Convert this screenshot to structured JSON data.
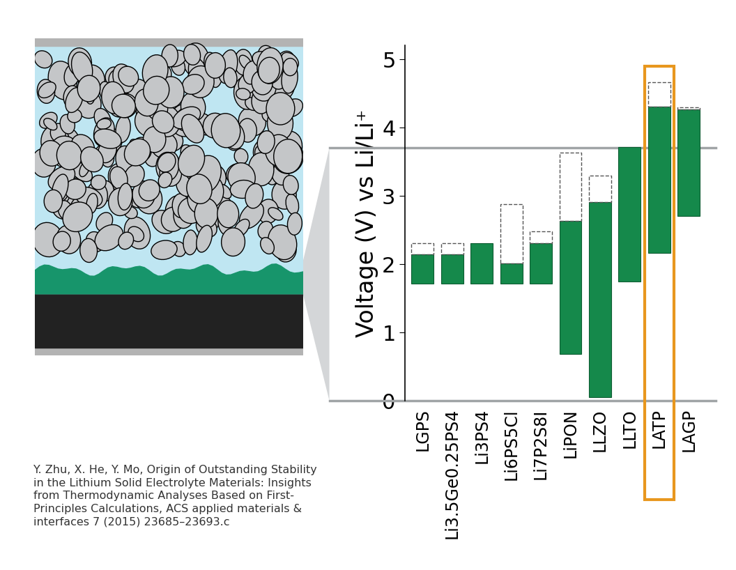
{
  "chart_data": {
    "type": "bar",
    "y_label": "Voltage (V) vs Li/Li⁺",
    "categories": [
      "LGPS",
      "Li3.5Ge0.25PS4",
      "Li3PS4",
      "Li6PS5Cl",
      "Li7P2S8I",
      "LiPON",
      "LLZO",
      "LLTO",
      "LATP",
      "LAGP"
    ],
    "low": [
      1.71,
      1.71,
      1.71,
      1.71,
      1.71,
      0.68,
      0.05,
      1.75,
      2.16,
      2.7
    ],
    "high": [
      2.14,
      2.14,
      2.31,
      2.01,
      2.31,
      2.63,
      2.91,
      3.71,
      4.31,
      4.27
    ],
    "high_extended": [
      2.31,
      2.31,
      null,
      2.88,
      2.48,
      3.63,
      3.3,
      null,
      4.66,
      4.3
    ],
    "color": "#15894b",
    "reference_lines": [
      0,
      3.7
    ],
    "highlight": "LATP",
    "ylim": [
      0,
      5.2
    ],
    "yticks": [
      0,
      1,
      2,
      3,
      4,
      5
    ],
    "grid": false,
    "citation": "Y. Zhu, X. He, Y. Mo, Origin of Outstanding Stability\nin the Lithium Solid Electrolyte Materials: Insights\nfrom Thermodynamic Analyses Based on First-\nPrinciples Calculations, ACS applied materials &\ninterfaces 7 (2015) 23685–23693.c"
  }
}
